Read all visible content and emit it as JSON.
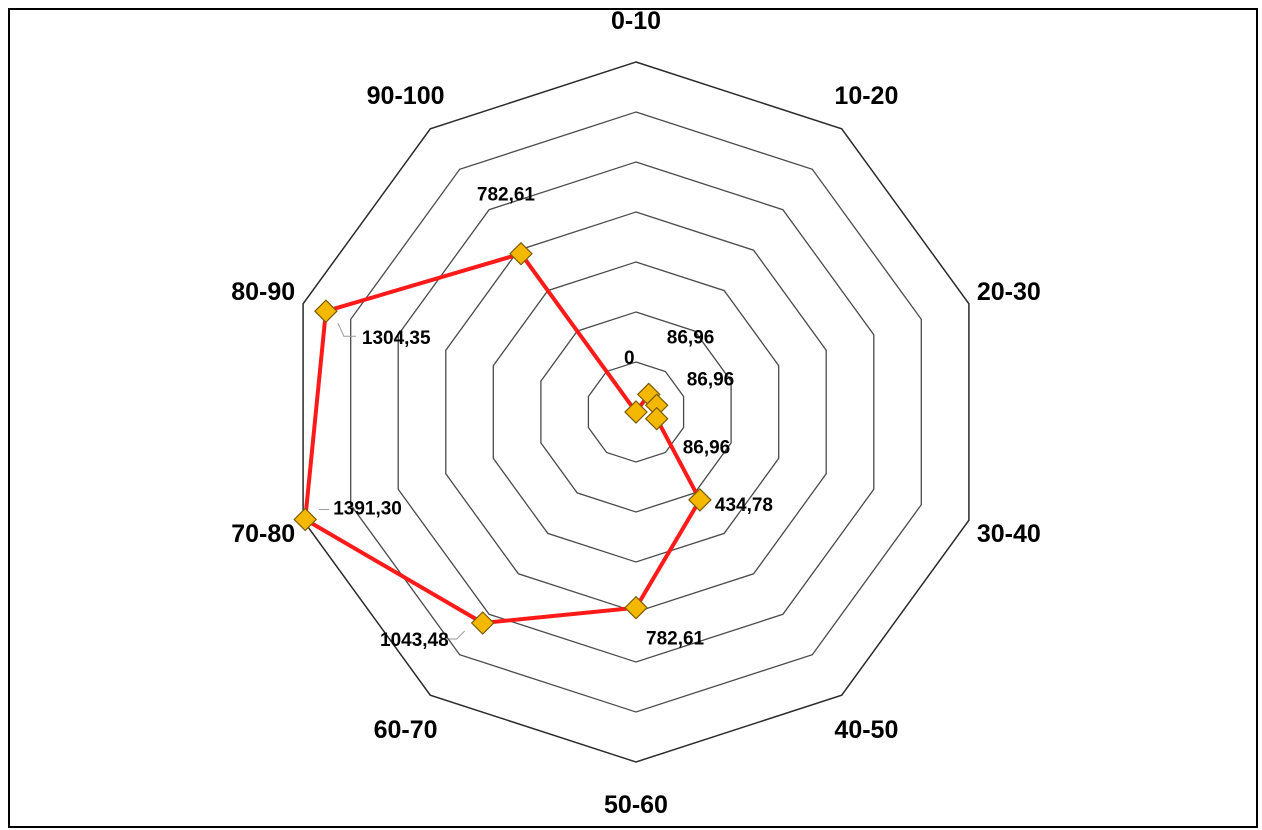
{
  "chart_data": {
    "type": "radar",
    "categories": [
      "0-10",
      "10-20",
      "20-30",
      "30-40",
      "40-50",
      "50-60",
      "60-70",
      "70-80",
      "80-90",
      "90-100"
    ],
    "series": [
      {
        "values": [
          0,
          86.96,
          86.96,
          86.96,
          434.78,
          782.61,
          1043.48,
          1391.3,
          1304.35,
          782.61
        ],
        "value_labels": [
          "0",
          "86,96",
          "86,96",
          "86,96",
          "434,78",
          "782,61",
          "1043,48",
          "1391,30",
          "1304,35",
          "782,61"
        ]
      }
    ],
    "rlim": [
      0,
      1400
    ],
    "grid_rings": 7,
    "grid": true,
    "legend": "none",
    "colors": {
      "line": "#ff1a1a",
      "marker_fill": "#f5b800",
      "grid": "#4a4a4a"
    }
  }
}
